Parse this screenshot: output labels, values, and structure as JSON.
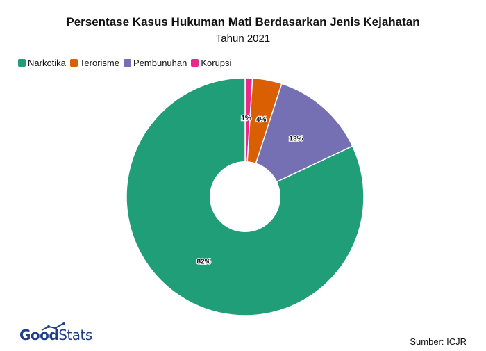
{
  "chart_data": {
    "type": "pie",
    "title": "Persentase Kasus Hukuman Mati Berdasarkan Jenis Kejahatan",
    "subtitle": "Tahun 2021",
    "categories": [
      "Narkotika",
      "Terorisme",
      "Pembunuhan",
      "Korupsi"
    ],
    "values": [
      82,
      4,
      13,
      1
    ],
    "labels": [
      "82%",
      "4%",
      "13%",
      "1%"
    ],
    "colors": [
      "#1f9e78",
      "#d95f02",
      "#7570b3",
      "#e7298a"
    ],
    "donut": true,
    "legend_position": "top-left",
    "slice_order": [
      "Korupsi",
      "Terorisme",
      "Pembunuhan",
      "Narkotika"
    ]
  },
  "footer": {
    "logo_good": "Good",
    "logo_stats": "Stats",
    "source": "Sumber: ICJR"
  }
}
